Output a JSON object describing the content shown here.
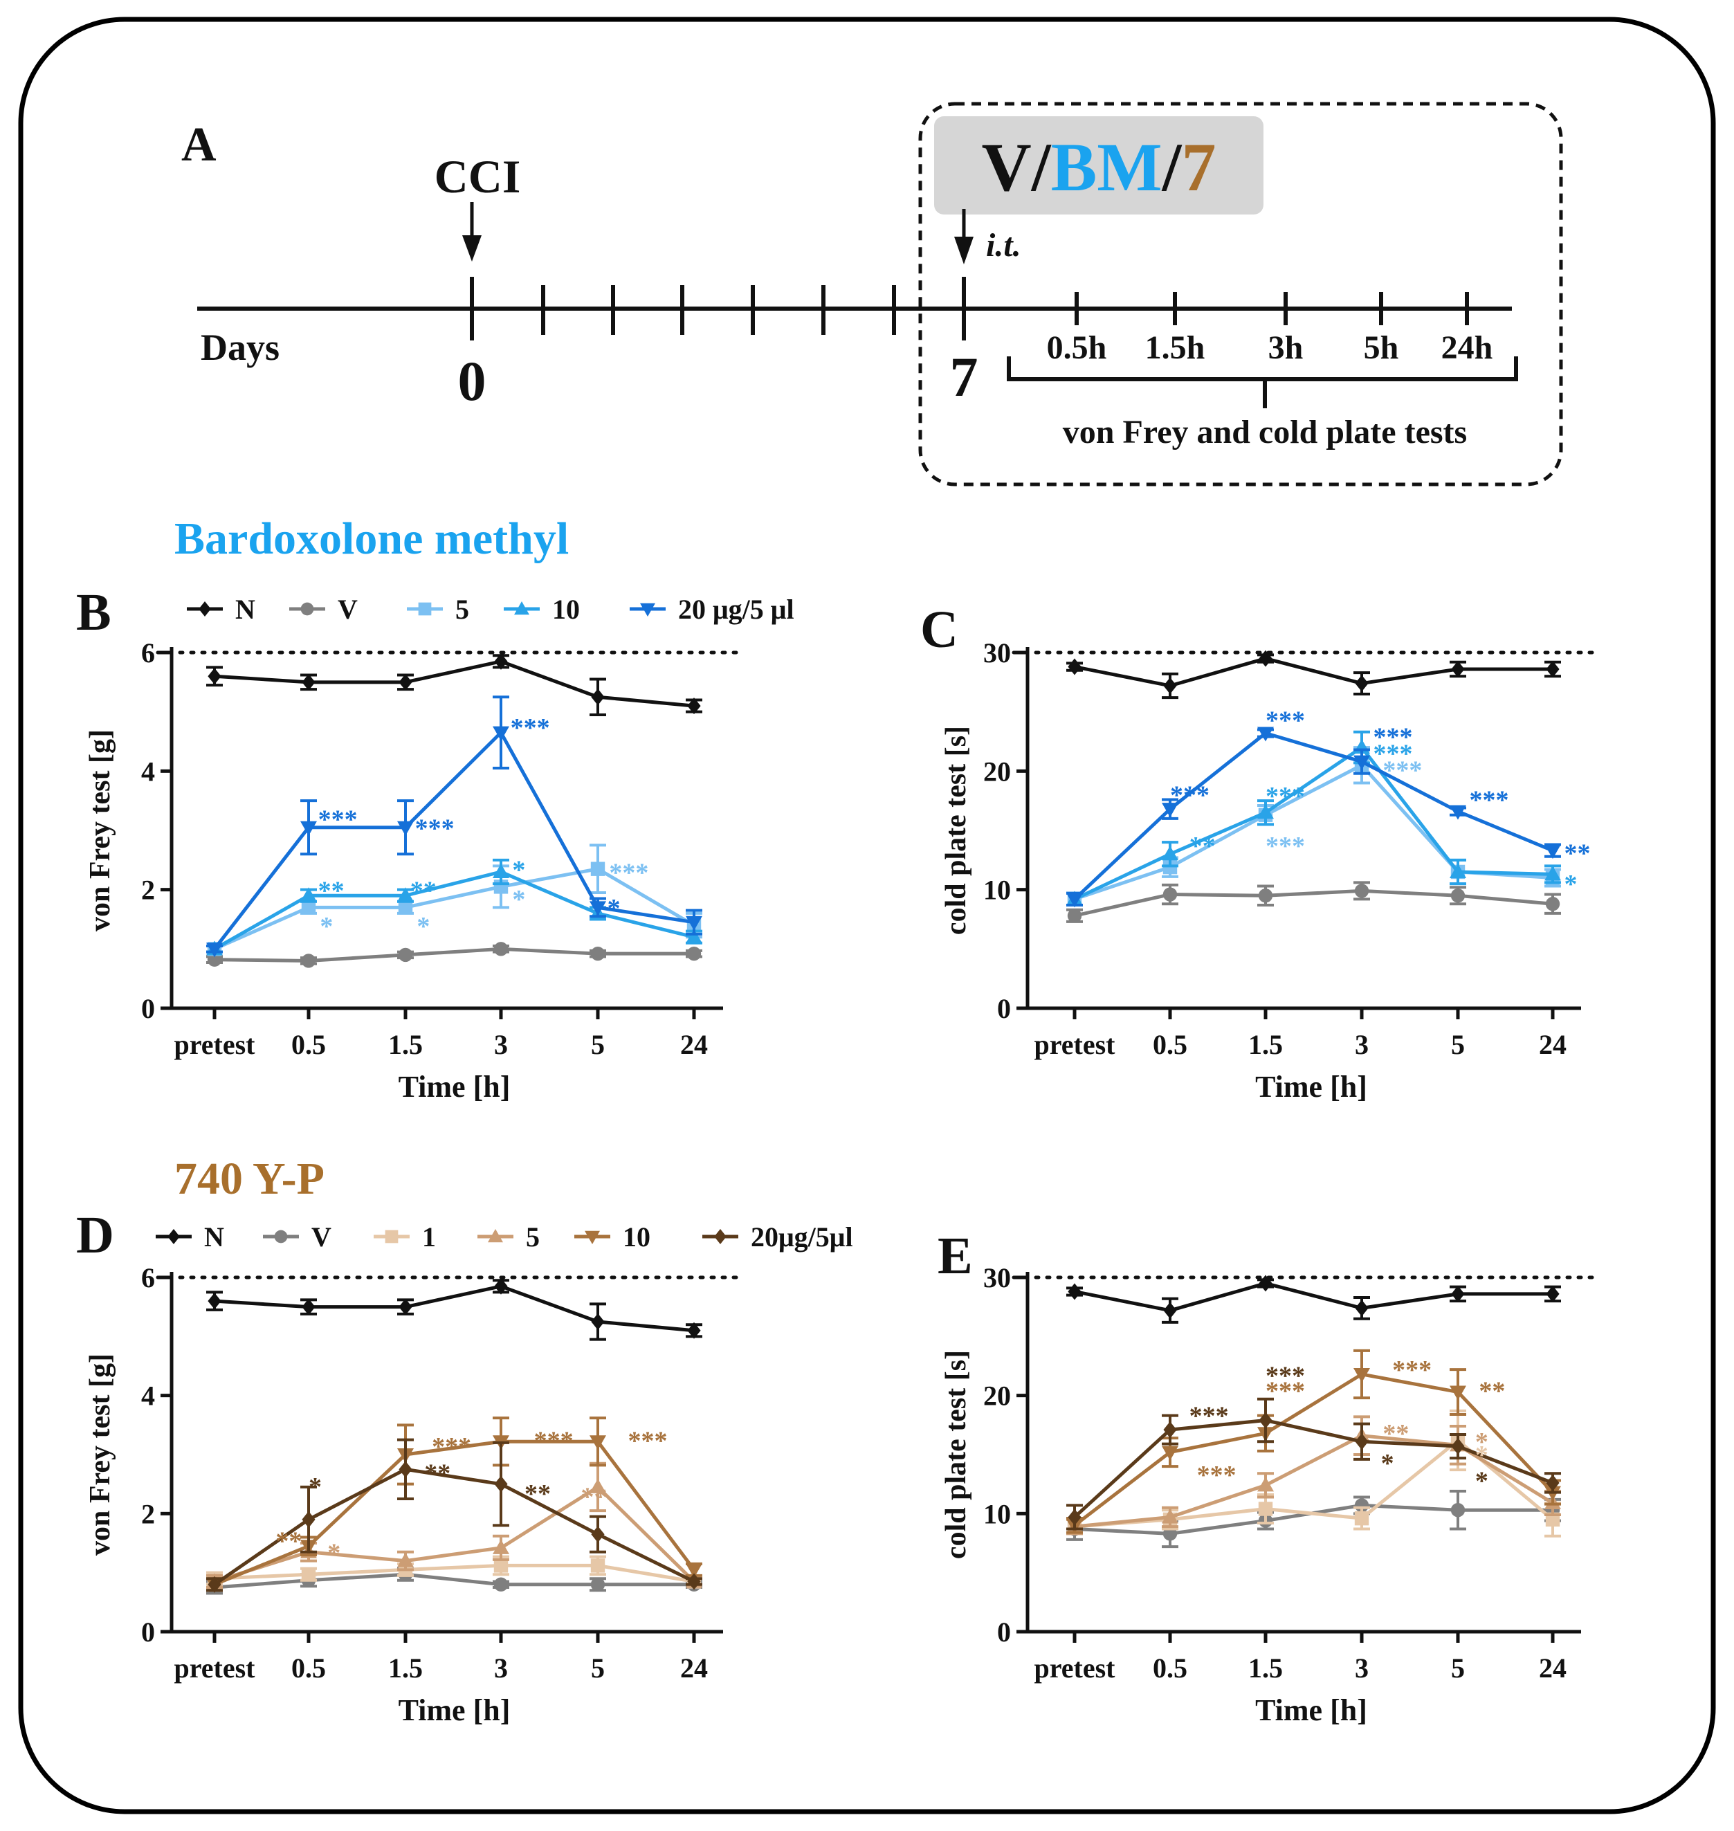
{
  "panel_a": {
    "label": "A",
    "cci_label": "CCI",
    "days_label": "Days",
    "day0": "0",
    "day7": "7",
    "it_label": "i.t.",
    "treatment": {
      "v": "V",
      "sep1": "/",
      "bm": "BM",
      "sep2": "/",
      "seven": "7"
    },
    "timepoints": [
      "0.5h",
      "1.5h",
      "3h",
      "5h",
      "24h"
    ],
    "tests_label": "von Frey and cold plate tests"
  },
  "section_bm_title": "Bardoxolone methyl",
  "section_yp_title": "740 Y-P",
  "colors": {
    "N": "#111111",
    "V": "#7f7f7f",
    "bm5": "#7cc0f2",
    "bm10": "#29a3e8",
    "bm20": "#1570d8",
    "yp1": "#e6c7a7",
    "yp5": "#cc9d74",
    "yp10": "#a8733d",
    "yp20": "#5a3a1a",
    "bm_title": "#1aa3ef",
    "yp_title": "#a86f2c"
  },
  "legend_bm": [
    {
      "key": "N",
      "label": "N",
      "marker": "diamond"
    },
    {
      "key": "V",
      "label": "V",
      "marker": "circle"
    },
    {
      "key": "bm5",
      "label": "5",
      "marker": "square"
    },
    {
      "key": "bm10",
      "label": "10",
      "marker": "triangle-up"
    },
    {
      "key": "bm20",
      "label": "20 μg/5 μl",
      "marker": "triangle-down"
    }
  ],
  "legend_yp": [
    {
      "key": "N",
      "label": "N",
      "marker": "diamond"
    },
    {
      "key": "V",
      "label": "V",
      "marker": "circle"
    },
    {
      "key": "yp1",
      "label": "1",
      "marker": "square"
    },
    {
      "key": "yp5",
      "label": "5",
      "marker": "triangle-up"
    },
    {
      "key": "yp10",
      "label": "10",
      "marker": "triangle-down"
    },
    {
      "key": "yp20",
      "label": "20μg/5μl",
      "marker": "diamond"
    }
  ],
  "chart_data": [
    {
      "id": "B",
      "label": "B",
      "type": "line",
      "categories": [
        "pretest",
        "0.5",
        "1.5",
        "3",
        "5",
        "24"
      ],
      "xlabel": "Time [h]",
      "ylabel": "von Frey test [g]",
      "ylim": [
        0,
        6
      ],
      "yticks": [
        0,
        2,
        4,
        6
      ],
      "reference_line": 6,
      "series": [
        {
          "name": "N",
          "key": "N",
          "marker": "diamond",
          "values": [
            5.6,
            5.5,
            5.5,
            5.85,
            5.25,
            5.1
          ],
          "errors": [
            0.15,
            0.12,
            0.12,
            0.1,
            0.3,
            0.1
          ]
        },
        {
          "name": "V",
          "key": "V",
          "marker": "circle",
          "values": [
            0.82,
            0.8,
            0.9,
            1.0,
            0.92,
            0.92
          ],
          "errors": [
            0.05,
            0.05,
            0.05,
            0.05,
            0.05,
            0.05
          ]
        },
        {
          "name": "5",
          "key": "bm5",
          "marker": "square",
          "values": [
            1.0,
            1.7,
            1.7,
            2.05,
            2.35,
            1.4
          ],
          "errors": [
            0.05,
            0.1,
            0.1,
            0.35,
            0.4,
            0.2
          ]
        },
        {
          "name": "10",
          "key": "bm10",
          "marker": "triangle-up",
          "values": [
            1.0,
            1.9,
            1.9,
            2.3,
            1.6,
            1.2
          ],
          "errors": [
            0.05,
            0.1,
            0.1,
            0.2,
            0.1,
            0.1
          ]
        },
        {
          "name": "20 μg/5 μl",
          "key": "bm20",
          "marker": "triangle-down",
          "values": [
            1.0,
            3.05,
            3.05,
            4.65,
            1.7,
            1.45
          ],
          "errors": [
            0.05,
            0.45,
            0.45,
            0.6,
            0.15,
            0.2
          ]
        }
      ],
      "annotations": [
        {
          "text": "***",
          "color": "bm20",
          "x": 1,
          "y": 3.25,
          "dx": 0.1
        },
        {
          "text": "***",
          "color": "bm20",
          "x": 2,
          "y": 3.1,
          "dx": 0.1
        },
        {
          "text": "***",
          "color": "bm20",
          "x": 3,
          "y": 4.8,
          "dx": 0.1
        },
        {
          "text": "**",
          "color": "bm10",
          "x": 1,
          "y": 2.05,
          "dx": 0.1
        },
        {
          "text": "**",
          "color": "bm10",
          "x": 2,
          "y": 2.05,
          "dx": 0.05
        },
        {
          "text": "*",
          "color": "bm10",
          "x": 3,
          "y": 2.4,
          "dx": 0.12
        },
        {
          "text": "*",
          "color": "bm5",
          "x": 1,
          "y": 1.45,
          "dx": 0.12
        },
        {
          "text": "*",
          "color": "bm5",
          "x": 2,
          "y": 1.45,
          "dx": 0.12
        },
        {
          "text": "*",
          "color": "bm5",
          "x": 3,
          "y": 1.9,
          "dx": 0.12
        },
        {
          "text": "***",
          "color": "bm5",
          "x": 4,
          "y": 2.35,
          "dx": 0.12
        },
        {
          "text": "*",
          "color": "bm20",
          "x": 4,
          "y": 1.75,
          "dx": 0.1
        }
      ]
    },
    {
      "id": "C",
      "label": "C",
      "type": "line",
      "categories": [
        "pretest",
        "0.5",
        "1.5",
        "3",
        "5",
        "24"
      ],
      "xlabel": "Time [h]",
      "ylabel": "cold plate test [s]",
      "ylim": [
        0,
        30
      ],
      "yticks": [
        0,
        10,
        20,
        30
      ],
      "reference_line": 30,
      "series": [
        {
          "name": "N",
          "key": "N",
          "marker": "diamond",
          "values": [
            28.8,
            27.2,
            29.5,
            27.4,
            28.6,
            28.6
          ],
          "errors": [
            0.3,
            1.0,
            0.3,
            0.9,
            0.6,
            0.6
          ]
        },
        {
          "name": "V",
          "key": "V",
          "marker": "circle",
          "values": [
            7.8,
            9.6,
            9.5,
            9.9,
            9.5,
            8.8
          ],
          "errors": [
            0.5,
            0.8,
            0.8,
            0.7,
            0.7,
            0.8
          ]
        },
        {
          "name": "5",
          "key": "bm5",
          "marker": "square",
          "values": [
            9.2,
            11.9,
            16.3,
            20.5,
            11.5,
            11.0
          ],
          "errors": [
            0.5,
            0.8,
            0.8,
            1.5,
            1.0,
            0.7
          ]
        },
        {
          "name": "10",
          "key": "bm10",
          "marker": "triangle-up",
          "values": [
            9.2,
            13.0,
            16.5,
            22.0,
            11.5,
            11.3
          ],
          "errors": [
            0.5,
            1.0,
            1.0,
            1.3,
            1.0,
            0.7
          ]
        },
        {
          "name": "20 μg/5 μl",
          "key": "bm20",
          "marker": "triangle-down",
          "values": [
            9.2,
            16.8,
            23.2,
            20.8,
            16.6,
            13.3
          ],
          "errors": [
            0.5,
            0.8,
            0.3,
            1.0,
            0.3,
            0.5
          ]
        }
      ],
      "annotations": [
        {
          "text": "***",
          "color": "bm20",
          "x": 1,
          "y": 18.3,
          "dx": 0
        },
        {
          "text": "***",
          "color": "bm20",
          "x": 2,
          "y": 24.6,
          "dx": 0
        },
        {
          "text": "***",
          "color": "bm20",
          "x": 3,
          "y": 23.2,
          "dx": 0.12
        },
        {
          "text": "***",
          "color": "bm10",
          "x": 3,
          "y": 21.8,
          "dx": 0.12
        },
        {
          "text": "***",
          "color": "bm5",
          "x": 3,
          "y": 20.4,
          "dx": 0.22
        },
        {
          "text": "***",
          "color": "bm20",
          "x": 4,
          "y": 17.9,
          "dx": 0.12
        },
        {
          "text": "**",
          "color": "bm10",
          "x": 1,
          "y": 14.0,
          "dx": 0.2
        },
        {
          "text": "***",
          "color": "bm10",
          "x": 2,
          "y": 18.2,
          "dx": 0
        },
        {
          "text": "***",
          "color": "bm5",
          "x": 2,
          "y": 14.0,
          "dx": 0
        },
        {
          "text": "**",
          "color": "bm20",
          "x": 5,
          "y": 13.4,
          "dx": 0.12
        },
        {
          "text": "*",
          "color": "bm10",
          "x": 5,
          "y": 10.8,
          "dx": 0.12
        }
      ]
    },
    {
      "id": "D",
      "label": "D",
      "type": "line",
      "categories": [
        "pretest",
        "0.5",
        "1.5",
        "3",
        "5",
        "24"
      ],
      "xlabel": "Time [h]",
      "ylabel": "von Frey test [g]",
      "ylim": [
        0,
        6
      ],
      "yticks": [
        0,
        2,
        4,
        6
      ],
      "reference_line": 6,
      "series": [
        {
          "name": "N",
          "key": "N",
          "marker": "diamond",
          "values": [
            5.6,
            5.5,
            5.5,
            5.85,
            5.25,
            5.1
          ],
          "errors": [
            0.15,
            0.12,
            0.12,
            0.1,
            0.3,
            0.1
          ]
        },
        {
          "name": "V",
          "key": "V",
          "marker": "circle",
          "values": [
            0.75,
            0.87,
            0.97,
            0.8,
            0.8,
            0.8
          ],
          "errors": [
            0.1,
            0.1,
            0.1,
            0.05,
            0.1,
            0.05
          ]
        },
        {
          "name": "1",
          "key": "yp1",
          "marker": "square",
          "values": [
            0.9,
            0.97,
            1.05,
            1.12,
            1.12,
            0.85
          ],
          "errors": [
            0.1,
            0.1,
            0.1,
            0.15,
            0.15,
            0.05
          ]
        },
        {
          "name": "5",
          "key": "yp5",
          "marker": "triangle-up",
          "values": [
            0.85,
            1.35,
            1.2,
            1.42,
            2.45,
            0.85
          ],
          "errors": [
            0.1,
            0.15,
            0.15,
            0.2,
            0.4,
            0.05
          ]
        },
        {
          "name": "10",
          "key": "yp10",
          "marker": "triangle-down",
          "values": [
            0.8,
            1.45,
            3.0,
            3.22,
            3.22,
            1.05
          ],
          "errors": [
            0.1,
            0.15,
            0.5,
            0.4,
            0.4,
            0.1
          ]
        },
        {
          "name": "20μg/5μl",
          "key": "yp20",
          "marker": "diamond",
          "values": [
            0.8,
            1.9,
            2.75,
            2.5,
            1.65,
            0.85
          ],
          "errors": [
            0.1,
            0.55,
            0.5,
            0.7,
            0.3,
            0.05
          ]
        }
      ],
      "annotations": [
        {
          "text": "*",
          "color": "yp20",
          "x": 1,
          "y": 2.52,
          "dx": 0
        },
        {
          "text": "**",
          "color": "yp10",
          "x": 1,
          "y": 1.6,
          "dx": -0.35
        },
        {
          "text": "*",
          "color": "yp5",
          "x": 1,
          "y": 1.4,
          "dx": 0.2
        },
        {
          "text": "***",
          "color": "yp10",
          "x": 2,
          "y": 3.2,
          "dx": 0.28
        },
        {
          "text": "**",
          "color": "yp20",
          "x": 2,
          "y": 2.75,
          "dx": 0.2
        },
        {
          "text": "***",
          "color": "yp10",
          "x": 3,
          "y": 3.3,
          "dx": 0.35
        },
        {
          "text": "**",
          "color": "yp20",
          "x": 3,
          "y": 2.4,
          "dx": 0.25
        },
        {
          "text": "**",
          "color": "yp5",
          "x": 4,
          "y": 2.35,
          "dx": -0.18
        },
        {
          "text": "***",
          "color": "yp10",
          "x": 4,
          "y": 3.3,
          "dx": 0.32
        }
      ]
    },
    {
      "id": "E",
      "label": "E",
      "type": "line",
      "categories": [
        "pretest",
        "0.5",
        "1.5",
        "3",
        "5",
        "24"
      ],
      "xlabel": "Time [h]",
      "ylabel": "cold plate test [s]",
      "ylim": [
        0,
        30
      ],
      "yticks": [
        0,
        10,
        20,
        30
      ],
      "reference_line": 30,
      "series": [
        {
          "name": "N",
          "key": "N",
          "marker": "diamond",
          "values": [
            28.8,
            27.2,
            29.5,
            27.4,
            28.6,
            28.6
          ],
          "errors": [
            0.3,
            1.0,
            0.3,
            0.9,
            0.6,
            0.6
          ]
        },
        {
          "name": "V",
          "key": "V",
          "marker": "circle",
          "values": [
            8.7,
            8.3,
            9.4,
            10.7,
            10.3,
            10.3
          ],
          "errors": [
            0.9,
            1.1,
            0.7,
            0.7,
            1.6,
            0.9
          ]
        },
        {
          "name": "1",
          "key": "yp1",
          "marker": "square",
          "values": [
            8.9,
            9.5,
            10.4,
            9.6,
            16.2,
            9.5
          ],
          "errors": [
            0.6,
            0.8,
            1.2,
            0.9,
            2.5,
            1.4
          ]
        },
        {
          "name": "5",
          "key": "yp5",
          "marker": "triangle-up",
          "values": [
            8.9,
            9.7,
            12.4,
            16.6,
            15.8,
            10.9
          ],
          "errors": [
            0.6,
            0.8,
            1.0,
            1.6,
            1.6,
            1.0
          ]
        },
        {
          "name": "10",
          "key": "yp10",
          "marker": "triangle-down",
          "values": [
            9.0,
            15.2,
            16.8,
            21.8,
            20.3,
            11.8
          ],
          "errors": [
            0.6,
            1.2,
            1.5,
            2.0,
            1.9,
            1.0
          ]
        },
        {
          "name": "20μg/5μl",
          "key": "yp20",
          "marker": "diamond",
          "values": [
            9.7,
            17.1,
            17.9,
            16.1,
            15.7,
            12.6
          ],
          "errors": [
            1.0,
            1.2,
            1.8,
            1.5,
            1.0,
            0.8
          ]
        }
      ],
      "annotations": [
        {
          "text": "***",
          "color": "yp20",
          "x": 1,
          "y": 18.6,
          "dx": 0.2
        },
        {
          "text": "***",
          "color": "yp10",
          "x": 1,
          "y": 13.6,
          "dx": 0.28
        },
        {
          "text": "***",
          "color": "yp20",
          "x": 2,
          "y": 22.0,
          "dx": 0
        },
        {
          "text": "***",
          "color": "yp10",
          "x": 2,
          "y": 20.7,
          "dx": 0
        },
        {
          "text": "***",
          "color": "yp10",
          "x": 3,
          "y": 22.5,
          "dx": 0.32
        },
        {
          "text": "**",
          "color": "yp5",
          "x": 3,
          "y": 17.1,
          "dx": 0.22
        },
        {
          "text": "*",
          "color": "yp20",
          "x": 3,
          "y": 14.6,
          "dx": 0.2
        },
        {
          "text": "**",
          "color": "yp10",
          "x": 4,
          "y": 20.7,
          "dx": 0.22
        },
        {
          "text": "*",
          "color": "yp5",
          "x": 4,
          "y": 16.4,
          "dx": 0.18
        },
        {
          "text": "*",
          "color": "yp1",
          "x": 4,
          "y": 15.3,
          "dx": 0.18
        },
        {
          "text": "*",
          "color": "yp20",
          "x": 4,
          "y": 13.1,
          "dx": 0.18
        }
      ]
    }
  ]
}
